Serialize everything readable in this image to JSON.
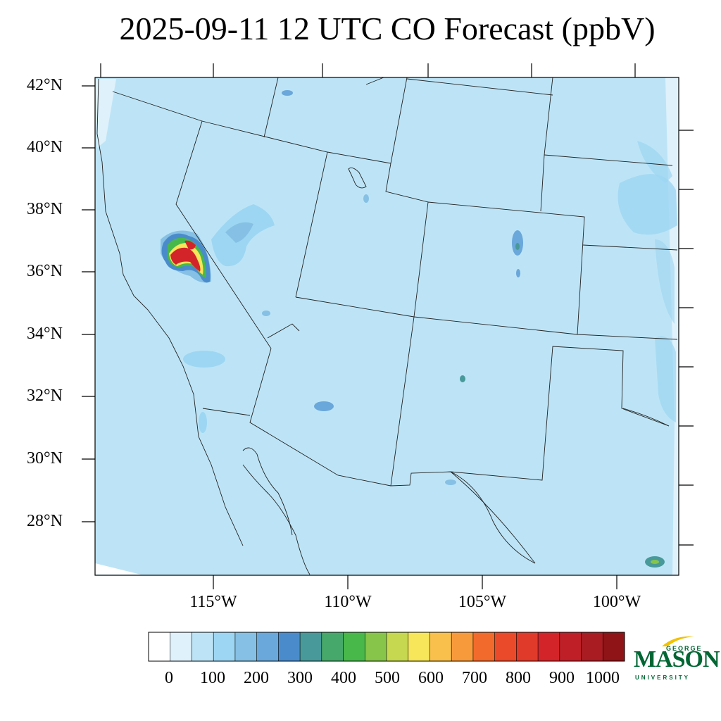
{
  "title": "2025-09-11 12 UTC CO Forecast (ppbV)",
  "map": {
    "lat_labels": [
      "42°N",
      "40°N",
      "38°N",
      "36°N",
      "34°N",
      "32°N",
      "30°N",
      "28°N"
    ],
    "lon_labels": [
      "115°W",
      "110°W",
      "105°W",
      "100°W"
    ],
    "background_color": "#bde4f6"
  },
  "colorbar": {
    "labels": [
      "0",
      "100",
      "200",
      "300",
      "400",
      "500",
      "600",
      "700",
      "800",
      "900",
      "1000"
    ],
    "colors": [
      "#ffffff",
      "#dff1fb",
      "#bde4f6",
      "#9dd6f2",
      "#86c0e4",
      "#6aa7da",
      "#4a8ccb",
      "#48999a",
      "#46a86a",
      "#48b84a",
      "#86c54a",
      "#c5d84f",
      "#f7e55a",
      "#f9c04b",
      "#f79a3b",
      "#f26a2c",
      "#ea4a2a",
      "#df3a2a",
      "#d3242a",
      "#bf1f27",
      "#a81c22",
      "#8e1418"
    ]
  },
  "logo": {
    "line1": "GEORGE",
    "line2": "MASON",
    "line3": "UNIVERSITY"
  }
}
